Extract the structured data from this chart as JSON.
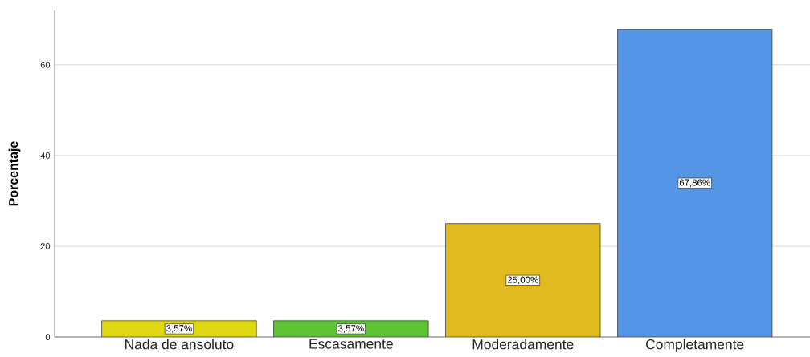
{
  "chart_data": {
    "type": "bar",
    "ylabel": "Porcentaje",
    "categories": [
      "Nada de ansoluto",
      "Escasamente",
      "Moderadamente",
      "Completamente"
    ],
    "values": [
      3.57,
      3.57,
      25.0,
      67.86
    ],
    "colors": [
      "#e0d80e",
      "#5ec436",
      "#e0ba1e",
      "#5595e5"
    ],
    "value_labels": [
      "3,57%",
      "3,57%",
      "25,00%",
      "67,86%"
    ],
    "ylim": [
      0,
      72
    ],
    "yticks": [
      0,
      20,
      40,
      60
    ],
    "grid": "y"
  }
}
